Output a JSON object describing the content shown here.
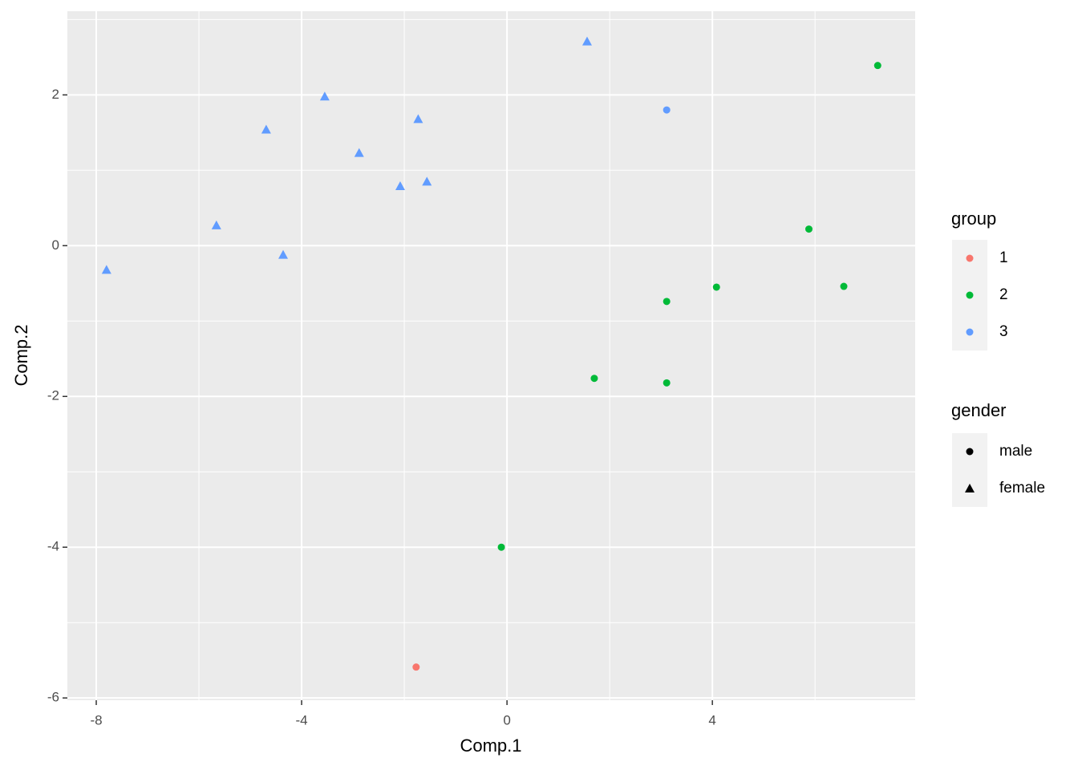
{
  "chart_data": {
    "type": "scatter",
    "x_label": "Comp.1",
    "y_label": "Comp.2",
    "x": [
      -7.8,
      -5.66,
      -4.69,
      -4.36,
      -3.55,
      -2.88,
      -2.08,
      -1.73,
      -1.56,
      1.56,
      3.11,
      7.22,
      5.88,
      4.08,
      6.56,
      3.11,
      1.7,
      3.11,
      -0.11,
      -1.77
    ],
    "y": [
      -0.32,
      0.27,
      1.54,
      -0.12,
      1.98,
      1.23,
      0.79,
      1.68,
      0.85,
      2.71,
      1.8,
      2.39,
      0.22,
      -0.55,
      -0.54,
      -0.74,
      -1.76,
      -1.82,
      -4.0,
      -5.59
    ],
    "group": [
      "3",
      "3",
      "3",
      "3",
      "3",
      "3",
      "3",
      "3",
      "3",
      "3",
      "3",
      "2",
      "2",
      "2",
      "2",
      "2",
      "2",
      "2",
      "2",
      "1"
    ],
    "gender": [
      "female",
      "female",
      "female",
      "female",
      "female",
      "female",
      "female",
      "female",
      "female",
      "female",
      "male",
      "male",
      "male",
      "male",
      "male",
      "male",
      "male",
      "male",
      "male",
      "male"
    ],
    "color_legend": {
      "title": "group",
      "items": [
        {
          "name": "1",
          "color": "#F8766D"
        },
        {
          "name": "2",
          "color": "#00BA38"
        },
        {
          "name": "3",
          "color": "#619CFF"
        }
      ]
    },
    "shape_legend": {
      "title": "gender",
      "items": [
        {
          "name": "male",
          "shape": "circle"
        },
        {
          "name": "female",
          "shape": "triangle"
        }
      ]
    },
    "xlim": [
      -8.5625,
      7.95
    ],
    "ylim": [
      -6.03,
      3.11
    ],
    "xticks": [
      -8,
      -4,
      0,
      4
    ],
    "yticks": [
      -6,
      -4,
      -2,
      0,
      2
    ],
    "minor_xticks": [
      -6,
      -2,
      2,
      6
    ],
    "minor_yticks": [
      -5,
      -3,
      -1,
      1,
      3
    ],
    "grid": true,
    "legend_position": "right"
  }
}
